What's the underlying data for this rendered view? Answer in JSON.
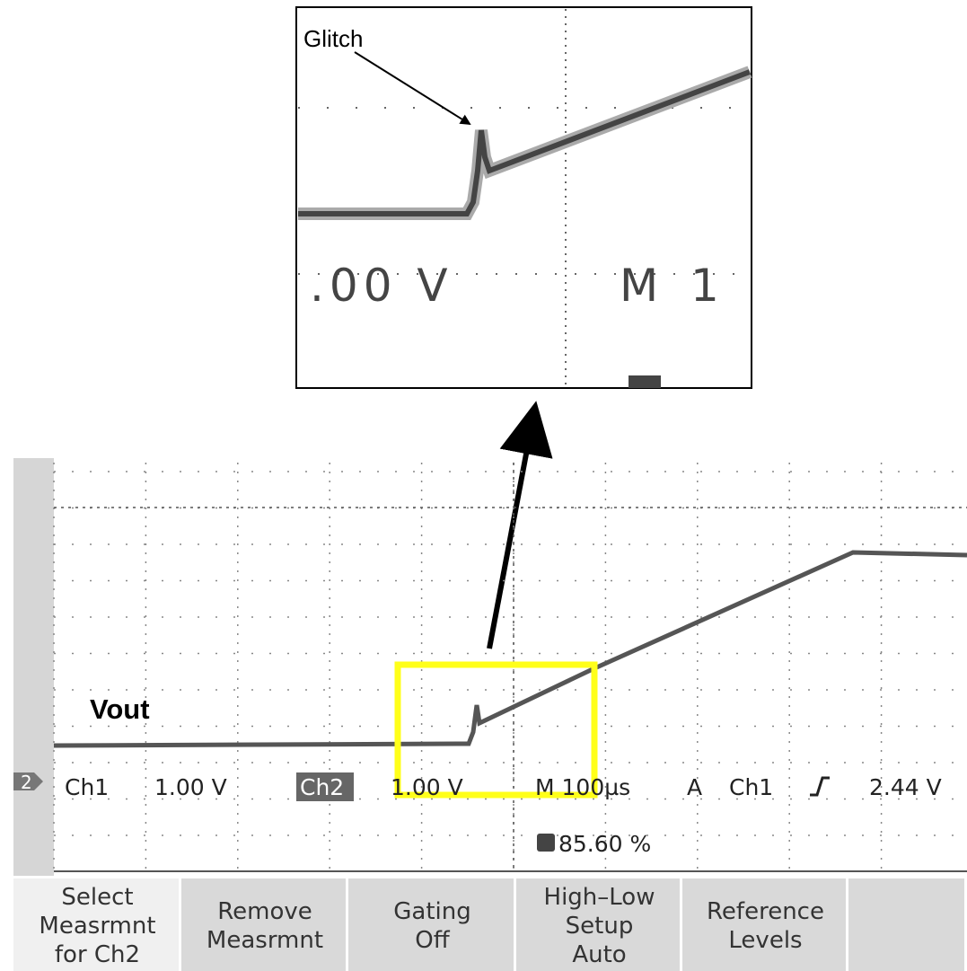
{
  "inset": {
    "label": "Glitch",
    "volts_fragment": ".00 V",
    "time_fragment": "M 1"
  },
  "scope": {
    "trace_label": "Vout",
    "channel_marker": "2",
    "status": {
      "ch1": "Ch1",
      "ch1_scale": "1.00 V",
      "ch2": "Ch2",
      "ch2_scale": "1.00 V",
      "timebase": "M 100µs",
      "trigger_mode": "A",
      "trigger_source": "Ch1",
      "trigger_level": "2.44 V"
    },
    "trigger_position": "85.60 %"
  },
  "buttons": [
    {
      "lines": [
        "Select",
        "Measrmnt",
        "for Ch2"
      ]
    },
    {
      "lines": [
        "Remove",
        "Measrmnt"
      ]
    },
    {
      "lines": [
        "Gating",
        "Off"
      ]
    },
    {
      "lines": [
        "High–Low",
        "Setup",
        "Auto"
      ]
    },
    {
      "lines": [
        "Reference",
        "Levels"
      ]
    },
    {
      "lines": []
    }
  ]
}
